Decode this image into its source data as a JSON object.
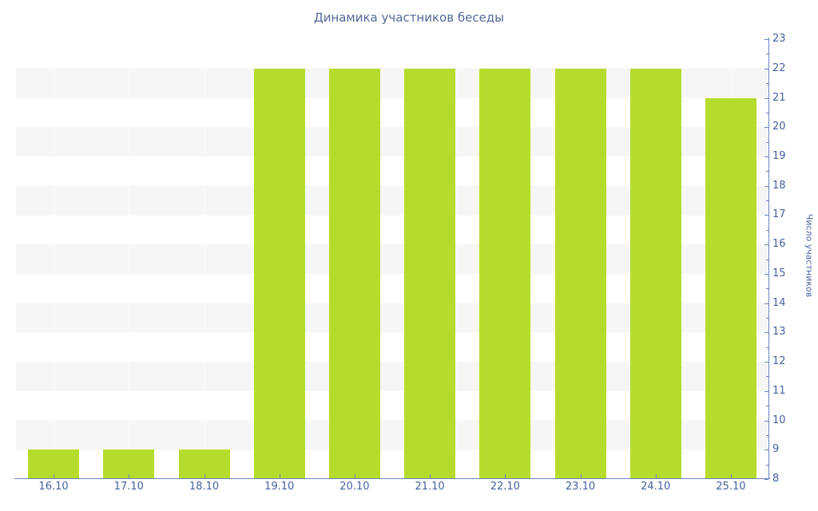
{
  "chart_data": {
    "type": "bar",
    "title": "Динамика участников беседы",
    "categories": [
      "16.10",
      "17.10",
      "18.10",
      "19.10",
      "20.10",
      "21.10",
      "22.10",
      "23.10",
      "24.10",
      "25.10"
    ],
    "values": [
      9,
      9,
      9,
      22,
      22,
      22,
      22,
      22,
      22,
      21
    ],
    "xlabel": "",
    "ylabel": "Число участников",
    "ylim": [
      8,
      23
    ],
    "y_major_step": 1,
    "y_minor_step": 0.5,
    "y_axis_side": "right",
    "legend": "none",
    "grid": "alternating-horizontal-stripes"
  },
  "colors": {
    "bar": "#b5dc2c",
    "stripe": "#f6f6f6",
    "background": "#ffffff",
    "axis_line": "#6b82be",
    "tick_label": "#45619f",
    "title": "#556799"
  }
}
